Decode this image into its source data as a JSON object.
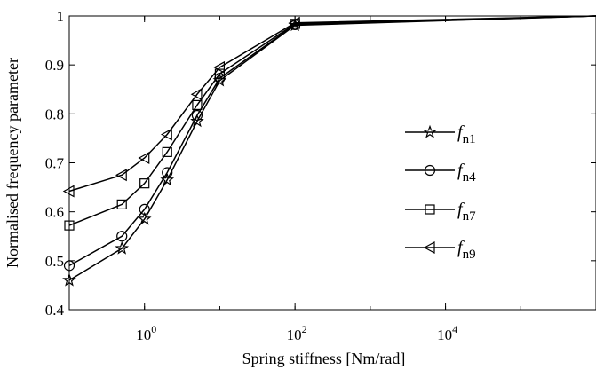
{
  "chart_data": {
    "type": "line",
    "xscale": "log",
    "xlim": [
      0.1,
      1000000
    ],
    "ylim": [
      0.4,
      1
    ],
    "xlabel": "Spring stiffness [Nm/rad]",
    "ylabel": "Normalised frequency parameter",
    "xticks": [
      {
        "value": 1,
        "base": "10",
        "exp": "0"
      },
      {
        "value": 100,
        "base": "10",
        "exp": "2"
      },
      {
        "value": 10000,
        "base": "10",
        "exp": "4"
      }
    ],
    "yticks": [
      "0.4",
      "0.5",
      "0.6",
      "0.7",
      "0.8",
      "0.9",
      "1"
    ],
    "grid": false,
    "legend_position": "right-center",
    "series": [
      {
        "name": "f",
        "subscript": "n1",
        "marker": "star",
        "x": [
          0.1,
          0.5,
          1,
          2,
          5,
          10,
          100,
          1000000
        ],
        "y": [
          0.46,
          0.525,
          0.585,
          0.665,
          0.785,
          0.868,
          0.981,
          1.0
        ]
      },
      {
        "name": "f",
        "subscript": "n4",
        "marker": "circle",
        "x": [
          0.1,
          0.5,
          1,
          2,
          5,
          10,
          100,
          1000000
        ],
        "y": [
          0.49,
          0.55,
          0.605,
          0.68,
          0.797,
          0.873,
          0.982,
          1.0
        ]
      },
      {
        "name": "f",
        "subscript": "n7",
        "marker": "square",
        "x": [
          0.1,
          0.5,
          1,
          2,
          5,
          10,
          100,
          1000000
        ],
        "y": [
          0.572,
          0.615,
          0.658,
          0.722,
          0.818,
          0.882,
          0.984,
          1.0
        ]
      },
      {
        "name": "f",
        "subscript": "n9",
        "marker": "triangle-left",
        "x": [
          0.1,
          0.5,
          1,
          2,
          5,
          10,
          100,
          1000000
        ],
        "y": [
          0.642,
          0.675,
          0.71,
          0.758,
          0.84,
          0.895,
          0.986,
          1.0
        ]
      }
    ]
  }
}
